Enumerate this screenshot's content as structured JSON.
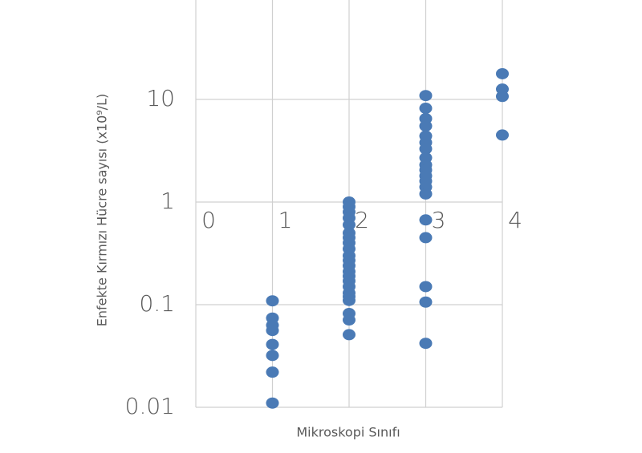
{
  "chart_data": {
    "type": "scatter",
    "xlabel": "Mikroskopi Sınıfı",
    "ylabel": "Enfekte Kırmızı Hücre sayısı  (x10⁹/L)",
    "x": [
      1,
      1,
      1,
      1,
      1,
      1,
      1,
      1,
      2,
      2,
      2,
      2,
      2,
      2,
      2,
      2,
      2,
      2,
      2,
      2,
      2,
      2,
      2,
      2,
      2,
      2,
      2,
      2,
      2,
      2,
      3,
      3,
      3,
      3,
      3,
      3,
      3,
      3,
      3,
      3,
      3,
      3,
      3,
      3,
      3,
      3,
      3,
      3,
      3,
      4,
      4,
      4,
      4
    ],
    "values": [
      0.109,
      0.074,
      0.063,
      0.056,
      0.041,
      0.032,
      0.022,
      0.011,
      1.0,
      0.9,
      0.8,
      0.7,
      0.6,
      0.5,
      0.45,
      0.4,
      0.35,
      0.3,
      0.27,
      0.24,
      0.21,
      0.19,
      0.17,
      0.15,
      0.13,
      0.12,
      0.11,
      0.082,
      0.071,
      0.051,
      10.9,
      8.2,
      6.5,
      5.5,
      4.4,
      3.8,
      3.3,
      2.7,
      2.3,
      2.05,
      1.8,
      1.6,
      1.4,
      1.2,
      0.67,
      0.45,
      0.15,
      0.106,
      0.042,
      17.8,
      12.6,
      10.7,
      4.5
    ],
    "color": "#4a7ab5",
    "xlim": [
      0,
      4
    ],
    "xticks": [
      0,
      1,
      2,
      3,
      4
    ],
    "ylim": [
      0.01,
      100
    ],
    "yticks": [
      0.01,
      0.1,
      1,
      10
    ],
    "log_y": true,
    "grid": true
  }
}
